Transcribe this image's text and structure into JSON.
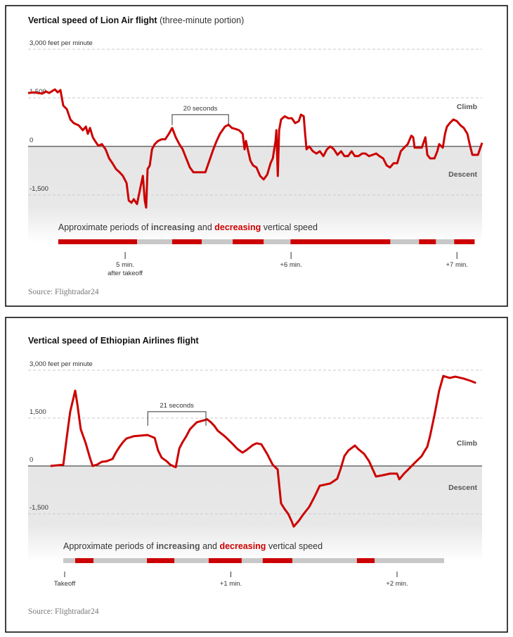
{
  "chart_data": [
    {
      "type": "line",
      "title": "Vertical speed of Lion Air flight",
      "subtitle": "(three-minute portion)",
      "x": [
        264.9,
        266.9,
        270.0,
        271.3,
        272.5,
        274.6,
        275.6,
        276.6,
        277.6,
        278.9,
        280.2,
        281.4,
        283.2,
        284.7,
        285.8,
        286.5,
        287.3,
        288.3,
        289.1,
        290.3,
        291.6,
        292.9,
        294.2,
        295.4,
        296.7,
        298.0,
        299.2,
        300.5,
        301.3,
        302.3,
        303.1,
        304.3,
        305.6,
        306.4,
        307.1,
        307.6,
        308.1,
        308.9,
        309.7,
        310.7,
        311.9,
        313.2,
        314.5,
        315.8,
        317.0,
        318.3,
        319.6,
        320.8,
        322.1,
        323.4,
        324.7,
        327.2,
        329.0,
        330.3,
        331.8,
        333.1,
        334.3,
        336.1,
        337.4,
        338.6,
        339.9,
        341.2,
        342.5,
        343.2,
        343.7,
        344.5,
        345.3,
        346.3,
        347.5,
        348.8,
        350.1,
        351.4,
        352.6,
        353.4,
        354.4,
        354.7,
        355.2,
        355.7,
        356.4,
        357.7,
        359.0,
        360.3,
        361.5,
        362.8,
        363.6,
        364.6,
        365.1,
        365.6,
        366.6,
        367.9,
        369.2,
        370.4,
        371.7,
        373.0,
        374.2,
        375.5,
        376.8,
        378.1,
        379.3,
        380.6,
        381.9,
        383.1,
        384.4,
        385.7,
        386.9,
        388.2,
        389.5,
        390.8,
        392.0,
        393.3,
        394.6,
        395.8,
        397.1,
        398.4,
        399.7,
        400.9,
        402.2,
        403.5,
        404.2,
        404.7,
        406.0,
        407.3,
        408.6,
        409.3,
        410.3,
        411.9,
        412.9,
        413.6,
        414.9,
        415.7,
        416.4,
        417.4,
        418.7,
        420.0,
        421.3,
        422.5,
        423.8,
        424.6,
        425.6,
        427.6,
        429.1
      ],
      "values": [
        1650,
        1670,
        1630,
        1700,
        1650,
        1760,
        1670,
        1740,
        1260,
        1150,
        830,
        720,
        650,
        500,
        610,
        390,
        570,
        280,
        170,
        20,
        70,
        -90,
        -370,
        -520,
        -700,
        -800,
        -910,
        -1130,
        -1670,
        -1740,
        -1630,
        -1780,
        -1240,
        -910,
        -1670,
        -1890,
        -700,
        -590,
        -90,
        70,
        170,
        220,
        220,
        390,
        570,
        280,
        70,
        -90,
        -370,
        -650,
        -800,
        -800,
        -800,
        -480,
        -110,
        170,
        390,
        610,
        670,
        570,
        540,
        500,
        390,
        -90,
        170,
        -150,
        -440,
        -590,
        -650,
        -910,
        -1020,
        -870,
        -520,
        -370,
        170,
        500,
        -910,
        500,
        830,
        930,
        870,
        870,
        720,
        780,
        980,
        930,
        390,
        -90,
        0,
        -150,
        -220,
        -150,
        -300,
        -90,
        0,
        -90,
        -260,
        -150,
        -300,
        -300,
        -150,
        -300,
        -300,
        -220,
        -220,
        -300,
        -260,
        -220,
        -300,
        -370,
        -590,
        -650,
        -520,
        -520,
        -150,
        -40,
        70,
        330,
        280,
        -40,
        -40,
        -40,
        280,
        -260,
        -370,
        -370,
        -150,
        70,
        -40,
        390,
        610,
        720,
        830,
        780,
        650,
        570,
        390,
        70,
        -260,
        -260,
        110
      ],
      "color": "#cc0000",
      "xlim": [
        264.9,
        429.1
      ],
      "ylim": [
        -3000,
        3000
      ],
      "xticks": [
        {
          "value": 300,
          "label": "5 min.\nafter takeoff"
        },
        {
          "value": 360,
          "label": "+6 min."
        },
        {
          "value": 420,
          "label": "+7 min."
        }
      ],
      "yticks": [
        {
          "value": 3000,
          "label": "3,000 feet per minute"
        },
        {
          "value": 1500,
          "label": "1,500"
        },
        0,
        {
          "value": -1500,
          "label": "-1,500"
        }
      ],
      "grid": true,
      "climb_label": "Climb",
      "descent_label": "Descent",
      "annotations": [
        {
          "text": "20 seconds",
          "x": [
            317.0,
            337.4
          ],
          "y": 980
        }
      ],
      "legend_text": [
        "Approximate periods of",
        "and",
        "vertical speed"
      ],
      "periods": [
        {
          "name": "increasing",
          "color": "#c8c8c8",
          "spans": [
            [
              304.3,
              317.0
            ],
            [
              327.7,
              338.9
            ],
            [
              350.1,
              359.8
            ],
            [
              395.9,
              406.3
            ],
            [
              412.4,
              419.0
            ]
          ]
        },
        {
          "name": "decreasing",
          "color": "#cc0000",
          "spans": [
            [
              275.8,
              304.3
            ],
            [
              317.0,
              327.7
            ],
            [
              338.9,
              350.1
            ],
            [
              359.8,
              395.9
            ],
            [
              406.3,
              412.4
            ],
            [
              419.0,
              426.4
            ]
          ]
        }
      ],
      "source": "Source: Flightradar24"
    },
    {
      "type": "line",
      "title": "Vertical speed of Ethiopian Airlines flight",
      "x": [
        -5.1,
        -0.5,
        0.8,
        2.0,
        3.8,
        4.6,
        5.8,
        7.6,
        9.1,
        10.1,
        11.7,
        13.4,
        15.2,
        17.3,
        18.5,
        19.8,
        21.1,
        22.3,
        24.9,
        27.4,
        29.9,
        32.5,
        33.7,
        35.0,
        36.8,
        38.1,
        40.1,
        41.4,
        42.6,
        43.9,
        45.2,
        47.7,
        50.2,
        51.5,
        52.8,
        54.0,
        55.3,
        57.8,
        60.4,
        62.4,
        64.2,
        65.5,
        66.7,
        68.0,
        69.3,
        71.0,
        73.1,
        75.1,
        76.9,
        78.1,
        79.4,
        80.7,
        81.9,
        82.7,
        84.5,
        86.3,
        88.3,
        90.3,
        92.1,
        95.9,
        98.4,
        99.7,
        101.0,
        102.5,
        104.8,
        106.0,
        108.1,
        109.9,
        112.4,
        114.9,
        117.5,
        120.0,
        120.8,
        122.5,
        123.8,
        126.3,
        128.9,
        130.1,
        130.9,
        131.9,
        133.5,
        135.2,
        136.7,
        139.0,
        141.0,
        144.0,
        146.5,
        148.5
      ],
      "values": [
        0,
        40,
        930,
        1700,
        2360,
        1920,
        1150,
        710,
        260,
        0,
        40,
        130,
        150,
        220,
        420,
        600,
        750,
        860,
        930,
        950,
        970,
        880,
        490,
        260,
        150,
        40,
        -40,
        550,
        750,
        930,
        1150,
        1370,
        1430,
        1460,
        1370,
        1260,
        1100,
        930,
        710,
        530,
        420,
        490,
        570,
        660,
        710,
        680,
        380,
        40,
        -110,
        -1170,
        -1350,
        -1500,
        -1720,
        -1900,
        -1720,
        -1500,
        -1280,
        -950,
        -620,
        -550,
        -400,
        -70,
        310,
        490,
        640,
        530,
        380,
        150,
        -330,
        -290,
        -240,
        -240,
        -420,
        -240,
        -130,
        90,
        310,
        490,
        600,
        930,
        1590,
        2360,
        2820,
        2760,
        2800,
        2740,
        2670,
        2600
      ],
      "color": "#cc0000",
      "xlim": [
        -13.2,
        150.7
      ],
      "ylim": [
        -3000,
        3000
      ],
      "xticks": [
        {
          "value": 0,
          "label": "Takeoff"
        },
        {
          "value": 60,
          "label": "+1 min."
        },
        {
          "value": 120,
          "label": "+2 min."
        }
      ],
      "yticks": [
        {
          "value": 3000,
          "label": "3,000 feet per minute"
        },
        {
          "value": 1500,
          "label": "1,500"
        },
        0,
        {
          "value": -1500,
          "label": "-1,500"
        }
      ],
      "grid": true,
      "climb_label": "Climb",
      "descent_label": "Descent",
      "annotations": [
        {
          "text": "21 seconds",
          "x": [
            30.0,
            51.0
          ],
          "y": 1700
        }
      ],
      "legend_text": [
        "Approximate periods of",
        "and",
        "vertical speed"
      ],
      "periods": [
        {
          "name": "increasing",
          "color": "#c8c8c8",
          "spans": [
            [
              -0.5,
              3.8
            ],
            [
              10.4,
              29.7
            ],
            [
              39.6,
              52.0
            ],
            [
              63.9,
              71.5
            ],
            [
              82.2,
              105.5
            ],
            [
              111.9,
              137.0
            ]
          ]
        },
        {
          "name": "decreasing",
          "color": "#cc0000",
          "spans": [
            [
              3.8,
              10.4
            ],
            [
              29.7,
              39.6
            ],
            [
              52.0,
              63.9
            ],
            [
              71.5,
              82.2
            ],
            [
              105.5,
              111.9
            ]
          ]
        }
      ],
      "source": "Source: Flightradar24"
    }
  ]
}
